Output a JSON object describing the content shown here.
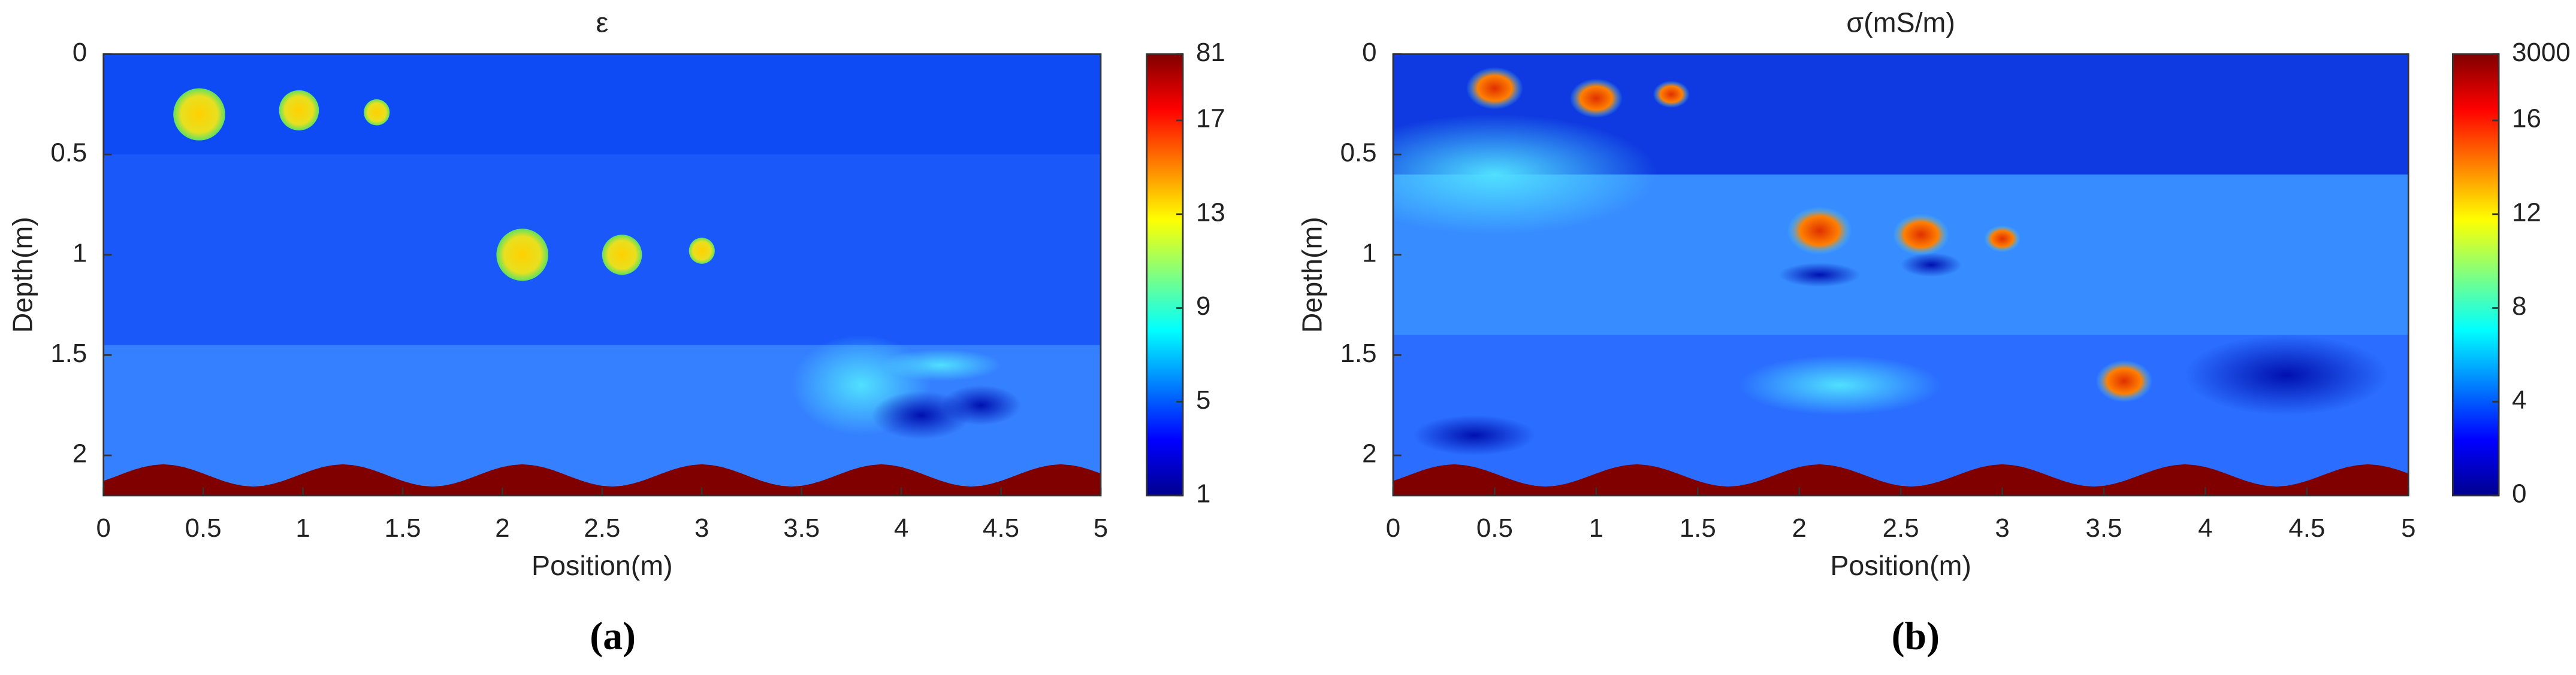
{
  "chart_data": [
    {
      "type": "heatmap",
      "title": "ε",
      "xlabel": "Position(m)",
      "ylabel": "Depth(m)",
      "xlim": [
        0,
        5
      ],
      "xticks": [
        0,
        0.5,
        1,
        1.5,
        2,
        2.5,
        3,
        3.5,
        4,
        4.5,
        5
      ],
      "ylim": [
        0,
        2.2
      ],
      "yticks": [
        0,
        0.5,
        1,
        1.5,
        2
      ],
      "y_inverted": true,
      "colormap": "jet",
      "colorbar_ticks": [
        1,
        5,
        9,
        13,
        17,
        81
      ],
      "panel_label": "(a)"
    },
    {
      "type": "heatmap",
      "title": "σ(mS/m)",
      "xlabel": "Position(m)",
      "ylabel": "Depth(m)",
      "xlim": [
        0,
        5
      ],
      "xticks": [
        0,
        0.5,
        1,
        1.5,
        2,
        2.5,
        3,
        3.5,
        4,
        4.5,
        5
      ],
      "ylim": [
        0,
        2.2
      ],
      "yticks": [
        0,
        0.5,
        1,
        1.5,
        2
      ],
      "y_inverted": true,
      "colormap": "jet",
      "colorbar_ticks": [
        0,
        4,
        8,
        12,
        16,
        3000
      ],
      "panel_label": "(b)"
    }
  ]
}
